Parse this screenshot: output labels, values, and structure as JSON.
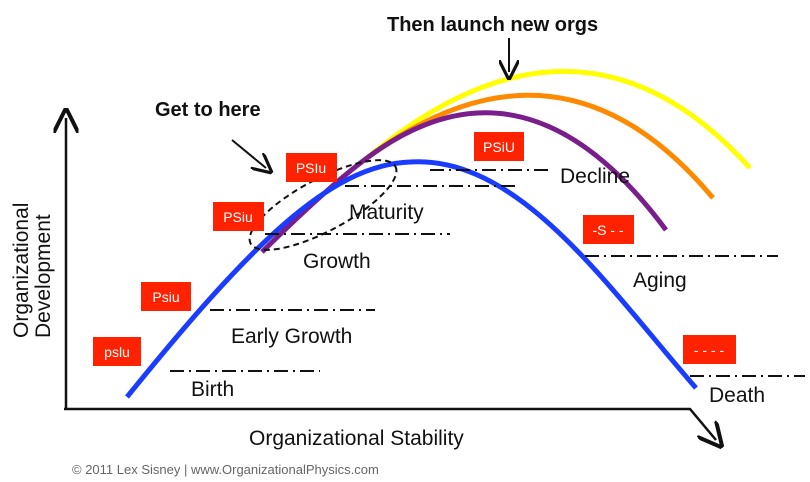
{
  "title": "Then launch new orgs",
  "annotation": "Get to here",
  "axes": {
    "x_label": "Organizational Stability",
    "y_label_line1": "Organizational",
    "y_label_line2": "Development"
  },
  "stages": [
    {
      "label": "Birth",
      "code": "pslu"
    },
    {
      "label": "Early Growth",
      "code": "Psiu"
    },
    {
      "label": "Growth",
      "code": "PSiu"
    },
    {
      "label": "Maturity",
      "code": "PSIu"
    },
    {
      "label": "Decline",
      "code": "PSiU"
    },
    {
      "label": "Aging",
      "code": "-S - -"
    },
    {
      "label": "Death",
      "code": "- - - -"
    }
  ],
  "colors": {
    "badge": "#ff2200",
    "main_curve": "#1a3cff",
    "curve_purple": "#7a1e8c",
    "curve_orange": "#ff8a00",
    "curve_yellow": "#ffff00"
  },
  "copyright": "© 2011 Lex Sisney | www.OrganizationalPhysics.com"
}
